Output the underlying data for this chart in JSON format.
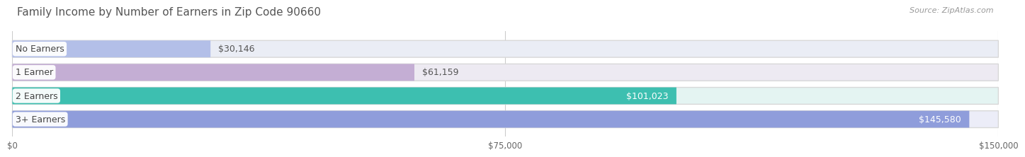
{
  "title": "Family Income by Number of Earners in Zip Code 90660",
  "source": "Source: ZipAtlas.com",
  "categories": [
    "No Earners",
    "1 Earner",
    "2 Earners",
    "3+ Earners"
  ],
  "values": [
    30146,
    61159,
    101023,
    145580
  ],
  "labels": [
    "$30,146",
    "$61,159",
    "$101,023",
    "$145,580"
  ],
  "bar_colors": [
    "#b3bfe8",
    "#c4aed4",
    "#3dbfb0",
    "#8f9ddb"
  ],
  "bar_bg_colors": [
    "#eaedf5",
    "#edeaf2",
    "#e4f4f2",
    "#ecedf8"
  ],
  "label_colors": [
    "#555555",
    "#555555",
    "#ffffff",
    "#ffffff"
  ],
  "xlim": [
    0,
    150000
  ],
  "xticks": [
    0,
    75000,
    150000
  ],
  "xticklabels": [
    "$0",
    "$75,000",
    "$150,000"
  ],
  "title_fontsize": 11,
  "source_fontsize": 8,
  "label_fontsize": 9,
  "category_fontsize": 9,
  "background_color": "#ffffff",
  "bar_bg_color_outer": "#e8e8e8",
  "bar_height": 0.72,
  "label_inside_threshold": 90000
}
